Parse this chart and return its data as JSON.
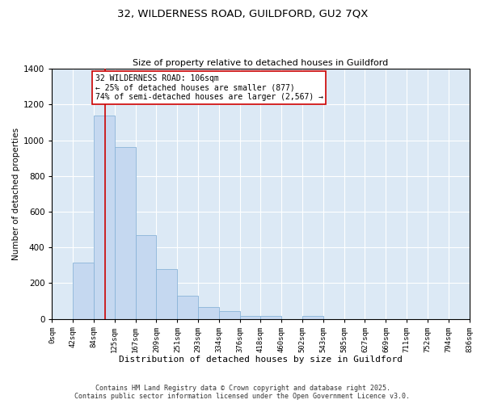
{
  "title1": "32, WILDERNESS ROAD, GUILDFORD, GU2 7QX",
  "title2": "Size of property relative to detached houses in Guildford",
  "xlabel": "Distribution of detached houses by size in Guildford",
  "ylabel": "Number of detached properties",
  "bar_color": "#c5d8f0",
  "bar_edge_color": "#8ab4d8",
  "background_color": "#dce9f5",
  "grid_color": "#ffffff",
  "vline_color": "#cc0000",
  "vline_x": 106,
  "annotation_line1": "32 WILDERNESS ROAD: 106sqm",
  "annotation_line2": "← 25% of detached houses are smaller (877)",
  "annotation_line3": "74% of semi-detached houses are larger (2,567) →",
  "annotation_box_color": "white",
  "annotation_border_color": "#cc0000",
  "bin_edges": [
    0,
    42,
    84,
    125,
    167,
    209,
    251,
    293,
    334,
    376,
    418,
    460,
    502,
    543,
    585,
    627,
    669,
    711,
    752,
    794,
    836
  ],
  "bar_heights": [
    0,
    313,
    1140,
    960,
    470,
    280,
    130,
    65,
    45,
    15,
    15,
    0,
    15,
    0,
    0,
    0,
    0,
    0,
    0,
    0
  ],
  "ylim": [
    0,
    1400
  ],
  "xlim": [
    0,
    836
  ],
  "yticks": [
    0,
    200,
    400,
    600,
    800,
    1000,
    1200,
    1400
  ],
  "footnote": "Contains HM Land Registry data © Crown copyright and database right 2025.\nContains public sector information licensed under the Open Government Licence v3.0."
}
